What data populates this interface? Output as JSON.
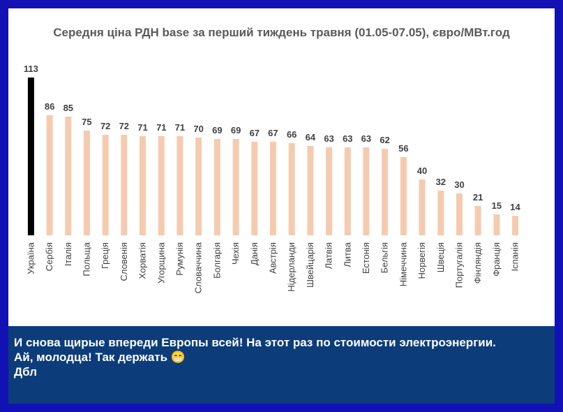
{
  "chart_data": {
    "type": "bar",
    "title": "Середня ціна РДН base за перший тиждень травня (01.05-07.05), євро/МВт.год",
    "categories": [
      "Україна",
      "Сербія",
      "Італія",
      "Польща",
      "Греція",
      "Словенія",
      "Хорватія",
      "Угорщина",
      "Румунія",
      "Словаччина",
      "Болгарія",
      "Чехія",
      "Данія",
      "Австрія",
      "Нідерланди",
      "Швейцарія",
      "Латвія",
      "Литва",
      "Естонія",
      "Бельгія",
      "Німеччина",
      "Норвегія",
      "Швеція",
      "Португалія",
      "Фінляндія",
      "Франція",
      "Іспанія"
    ],
    "values": [
      113,
      86,
      85,
      75,
      72,
      72,
      71,
      71,
      71,
      70,
      69,
      69,
      67,
      67,
      66,
      64,
      63,
      63,
      63,
      62,
      56,
      40,
      32,
      30,
      21,
      15,
      14
    ],
    "colors": {
      "highlight": "#000000",
      "bars": "#f5cbb0"
    },
    "ylim": [
      0,
      120
    ],
    "grid": false,
    "legend": "none"
  },
  "caption": {
    "text": "И снова щирые впереди Европы всей! На этот раз по стоимости электроэнергии.\nАй, молодца! Так держать 😁\nДбл"
  }
}
